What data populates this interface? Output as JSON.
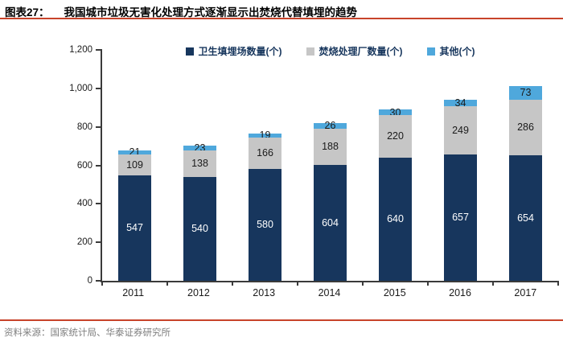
{
  "header": {
    "prefix": "图表27：",
    "title": "我国城市垃圾无害化处理方式逐渐显示出焚烧代替填埋的趋势"
  },
  "footer": {
    "source": "资料来源：国家统计局、华泰证券研究所"
  },
  "colors": {
    "accent_rule": "#C8432A",
    "axis": "#3a3a3a",
    "legend_text": "#17365D"
  },
  "chart_data": {
    "type": "bar",
    "stacked": true,
    "title": "我国城市垃圾无害化处理方式逐渐显示出焚烧代替填埋的趋势",
    "categories": [
      "2011",
      "2012",
      "2013",
      "2014",
      "2015",
      "2016",
      "2017"
    ],
    "series": [
      {
        "name": "卫生填埋场数量(个)",
        "color": "#17365D",
        "label_color": "#FFFFFF",
        "values": [
          547,
          540,
          580,
          604,
          640,
          657,
          654
        ]
      },
      {
        "name": "焚烧处理厂数量(个)",
        "color": "#C6C6C6",
        "label_color": "#1A1A1A",
        "values": [
          109,
          138,
          166,
          188,
          220,
          249,
          286
        ]
      },
      {
        "name": "其他(个)",
        "color": "#4FA8DC",
        "label_color": "#1A1A1A",
        "values": [
          21,
          23,
          19,
          26,
          30,
          34,
          73
        ]
      }
    ],
    "ylim": [
      0,
      1200
    ],
    "yticks": [
      "1,200",
      "1,000",
      "800",
      "600",
      "400",
      "200",
      "0"
    ],
    "xlabel": "",
    "ylabel": "",
    "grid": false,
    "legend_position": "top-center"
  }
}
